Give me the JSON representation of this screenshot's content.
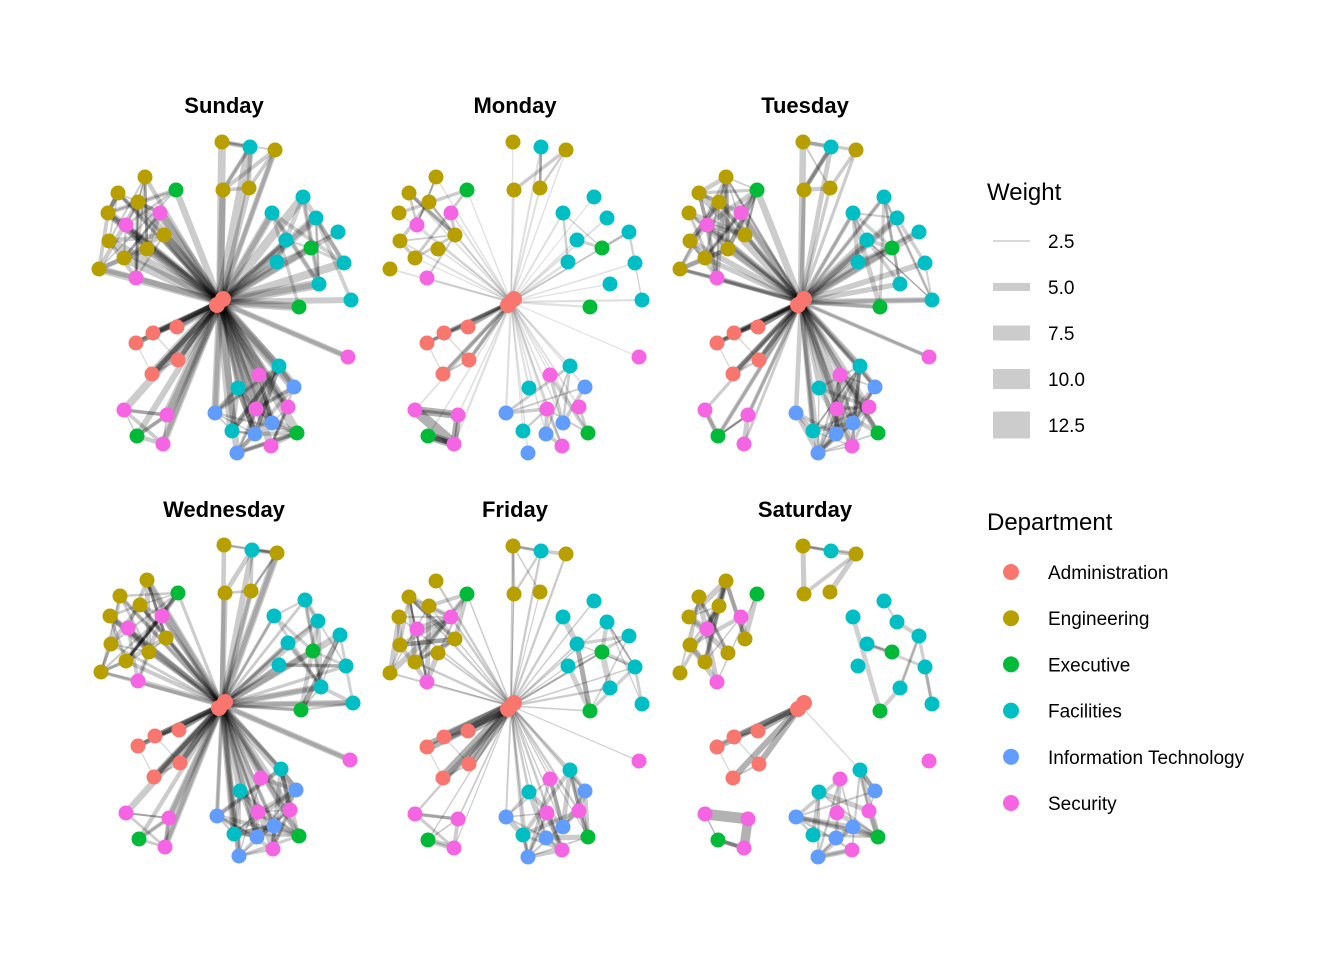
{
  "chart_data": {
    "type": "network",
    "title": "",
    "facet_variable": "day",
    "panels": [
      {
        "title": "Sunday",
        "density": "high",
        "hub_weight": 7,
        "peripheral_weight": 4
      },
      {
        "title": "Monday",
        "density": "low",
        "hub_weight": 1.5,
        "peripheral_weight": 3
      },
      {
        "title": "Tuesday",
        "density": "high",
        "hub_weight": 5,
        "peripheral_weight": 4
      },
      {
        "title": "Wednesday",
        "density": "high",
        "hub_weight": 5,
        "peripheral_weight": 4
      },
      {
        "title": "Friday",
        "density": "medium",
        "hub_weight": 1.5,
        "peripheral_weight": 5
      },
      {
        "title": "Saturday",
        "density": "none-hub",
        "hub_weight": 0,
        "peripheral_weight": 5
      }
    ],
    "departments": [
      {
        "name": "Administration",
        "color": "#F8766D"
      },
      {
        "name": "Engineering",
        "color": "#B79F00"
      },
      {
        "name": "Executive",
        "color": "#00BA38"
      },
      {
        "name": "Facilities",
        "color": "#00BFC4"
      },
      {
        "name": "Information Technology",
        "color": "#619CFF"
      },
      {
        "name": "Security",
        "color": "#F564E3"
      }
    ],
    "weight_legend": {
      "title": "Weight",
      "breaks": [
        2.5,
        5.0,
        7.5,
        10.0,
        12.5
      ],
      "labels": [
        "2.5",
        "5.0",
        "7.5",
        "10.0",
        "12.5"
      ]
    },
    "color_legend": {
      "title": "Department"
    },
    "nodes": [
      {
        "id": 0,
        "dept": "Administration",
        "hub": true
      },
      {
        "id": 1,
        "dept": "Administration"
      },
      {
        "id": 2,
        "dept": "Administration"
      },
      {
        "id": 3,
        "dept": "Administration"
      },
      {
        "id": 4,
        "dept": "Administration"
      },
      {
        "id": 5,
        "dept": "Administration"
      },
      {
        "id": 6,
        "dept": "Engineering"
      },
      {
        "id": 7,
        "dept": "Facilities"
      },
      {
        "id": 8,
        "dept": "Engineering"
      },
      {
        "id": 9,
        "dept": "Engineering"
      },
      {
        "id": 10,
        "dept": "Engineering"
      },
      {
        "id": 11,
        "dept": "Engineering"
      },
      {
        "id": 12,
        "dept": "Engineering"
      },
      {
        "id": 13,
        "dept": "Executive"
      },
      {
        "id": 14,
        "dept": "Engineering"
      },
      {
        "id": 15,
        "dept": "Engineering"
      },
      {
        "id": 16,
        "dept": "Security"
      },
      {
        "id": 17,
        "dept": "Security"
      },
      {
        "id": 18,
        "dept": "Engineering"
      },
      {
        "id": 19,
        "dept": "Engineering"
      },
      {
        "id": 20,
        "dept": "Engineering"
      },
      {
        "id": 21,
        "dept": "Engineering"
      },
      {
        "id": 22,
        "dept": "Engineering"
      },
      {
        "id": 23,
        "dept": "Security"
      },
      {
        "id": 24,
        "dept": "Facilities"
      },
      {
        "id": 25,
        "dept": "Facilities"
      },
      {
        "id": 26,
        "dept": "Facilities"
      },
      {
        "id": 27,
        "dept": "Facilities"
      },
      {
        "id": 28,
        "dept": "Facilities"
      },
      {
        "id": 29,
        "dept": "Executive"
      },
      {
        "id": 30,
        "dept": "Facilities"
      },
      {
        "id": 31,
        "dept": "Facilities"
      },
      {
        "id": 32,
        "dept": "Facilities"
      },
      {
        "id": 33,
        "dept": "Executive"
      },
      {
        "id": 34,
        "dept": "Facilities"
      },
      {
        "id": 35,
        "dept": "Security"
      },
      {
        "id": 36,
        "dept": "Facilities"
      },
      {
        "id": 37,
        "dept": "Security"
      },
      {
        "id": 38,
        "dept": "Facilities"
      },
      {
        "id": 39,
        "dept": "Information Technology"
      },
      {
        "id": 40,
        "dept": "Security"
      },
      {
        "id": 41,
        "dept": "Security"
      },
      {
        "id": 42,
        "dept": "Information Technology"
      },
      {
        "id": 43,
        "dept": "Information Technology"
      },
      {
        "id": 44,
        "dept": "Facilities"
      },
      {
        "id": 45,
        "dept": "Information Technology"
      },
      {
        "id": 46,
        "dept": "Executive"
      },
      {
        "id": 47,
        "dept": "Security"
      },
      {
        "id": 48,
        "dept": "Information Technology"
      },
      {
        "id": 49,
        "dept": "Security"
      },
      {
        "id": 50,
        "dept": "Security"
      },
      {
        "id": 51,
        "dept": "Executive"
      },
      {
        "id": 52,
        "dept": "Security"
      }
    ]
  }
}
